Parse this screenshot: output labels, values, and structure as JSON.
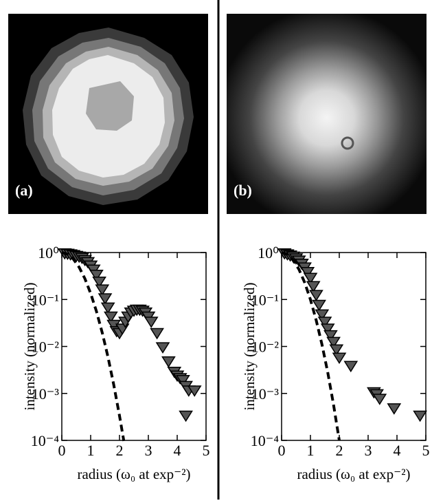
{
  "panels": [
    "(a)",
    "(b)"
  ],
  "chart_data": [
    {
      "type": "scatter",
      "xlabel": "radius (ω₀ at exp⁻²)",
      "ylabel": "intensity (normalized)",
      "xlim": [
        0,
        5
      ],
      "xticks": [
        0,
        1,
        2,
        3,
        4,
        5
      ],
      "ylim": [
        0.0001,
        1
      ],
      "ylog": true,
      "yticks": [
        {
          "value": 1,
          "label": "10⁰"
        },
        {
          "value": 0.1,
          "label": "10⁻¹"
        },
        {
          "value": 0.01,
          "label": "10⁻²"
        },
        {
          "value": 0.001,
          "label": "10⁻³"
        },
        {
          "value": 0.0001,
          "label": "10⁻⁴"
        }
      ],
      "series": [
        {
          "color": "#555555",
          "marker": "triangle-down",
          "x": [
            0.1,
            0.2,
            0.3,
            0.4,
            0.5,
            0.6,
            0.7,
            0.8,
            0.9,
            1.0,
            1.1,
            1.2,
            1.3,
            1.4,
            1.5,
            1.6,
            1.7,
            1.8,
            1.9,
            2.0,
            2.1,
            2.2,
            2.3,
            2.4,
            2.5,
            2.6,
            2.7,
            2.8,
            2.9,
            3.0,
            3.1,
            3.3,
            3.5,
            3.7,
            3.9,
            4.0,
            4.1,
            4.2,
            4.3,
            4.4,
            4.6,
            4.3
          ],
          "values": [
            1,
            0.98,
            0.95,
            0.92,
            0.88,
            0.85,
            0.8,
            0.72,
            0.65,
            0.55,
            0.45,
            0.35,
            0.25,
            0.17,
            0.11,
            0.07,
            0.045,
            0.03,
            0.022,
            0.02,
            0.025,
            0.035,
            0.045,
            0.055,
            0.06,
            0.063,
            0.063,
            0.06,
            0.055,
            0.045,
            0.035,
            0.02,
            0.01,
            0.005,
            0.003,
            0.0025,
            0.0022,
            0.002,
            0.0015,
            0.0012,
            0.0012,
            0.00035
          ]
        },
        {
          "color": "#000000",
          "style": "dashed",
          "x": [
            0,
            0.2,
            0.4,
            0.6,
            0.8,
            1.0,
            1.2,
            1.4,
            1.6,
            1.8,
            2.0,
            2.15
          ],
          "values": [
            1,
            0.923,
            0.726,
            0.487,
            0.278,
            0.135,
            0.0561,
            0.0198,
            0.00598,
            0.00153,
            0.000335,
            9.7e-05
          ]
        }
      ]
    },
    {
      "type": "scatter",
      "xlabel": "radius (ω₀ at exp⁻²)",
      "ylabel": "intensity (normalized)",
      "xlim": [
        0,
        5
      ],
      "xticks": [
        0,
        1,
        2,
        3,
        4,
        5
      ],
      "ylim": [
        0.0001,
        1
      ],
      "ylog": true,
      "yticks": [
        {
          "value": 1,
          "label": "10⁰"
        },
        {
          "value": 0.1,
          "label": "10⁻¹"
        },
        {
          "value": 0.01,
          "label": "10⁻²"
        },
        {
          "value": 0.001,
          "label": "10⁻³"
        },
        {
          "value": 0.0001,
          "label": "10⁻⁴"
        }
      ],
      "series": [
        {
          "color": "#555555",
          "marker": "triangle-down",
          "x": [
            0.1,
            0.2,
            0.3,
            0.4,
            0.5,
            0.6,
            0.7,
            0.8,
            0.9,
            1.0,
            1.1,
            1.2,
            1.3,
            1.4,
            1.5,
            1.6,
            1.7,
            1.8,
            1.9,
            2.0,
            2.4,
            3.2,
            3.3,
            3.4,
            3.9,
            4.8
          ],
          "values": [
            1,
            0.95,
            0.9,
            0.85,
            0.78,
            0.7,
            0.6,
            0.5,
            0.4,
            0.3,
            0.2,
            0.13,
            0.08,
            0.05,
            0.035,
            0.025,
            0.018,
            0.013,
            0.009,
            0.006,
            0.004,
            0.0011,
            0.001,
            0.0008,
            0.0005,
            0.00035
          ]
        },
        {
          "color": "#000000",
          "style": "dashed",
          "x": [
            0,
            0.2,
            0.4,
            0.6,
            0.8,
            1.0,
            1.2,
            1.4,
            1.6,
            1.8,
            2.0
          ],
          "values": [
            1,
            0.91,
            0.69,
            0.44,
            0.23,
            0.1,
            0.036,
            0.011,
            0.0028,
            0.00058,
            0.0001
          ]
        }
      ]
    }
  ]
}
